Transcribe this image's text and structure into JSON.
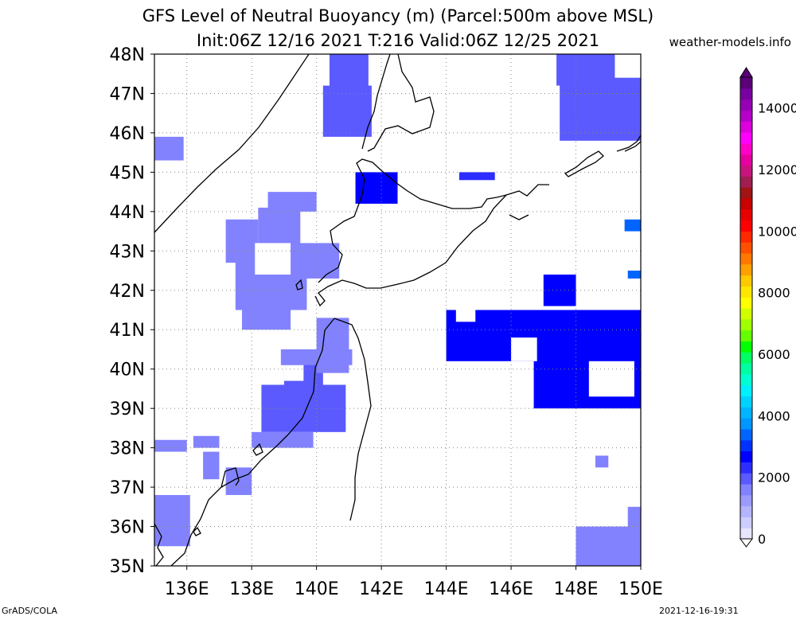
{
  "title": {
    "line1": "GFS Level of Neutral Buoyancy (m) (Parcel:500m above MSL)",
    "line2": "Init:06Z 12/16 2021 T:216 Valid:06Z 12/25 2021"
  },
  "site": "weather-models.info",
  "footer": {
    "left": "GrADS/COLA",
    "right": "2021-12-16-19:31"
  },
  "map": {
    "lon_range": [
      135,
      150
    ],
    "lat_range": [
      35,
      48
    ],
    "lon_ticks": [
      {
        "value": 136,
        "label": "136E"
      },
      {
        "value": 138,
        "label": "138E"
      },
      {
        "value": 140,
        "label": "140E"
      },
      {
        "value": 142,
        "label": "142E"
      },
      {
        "value": 144,
        "label": "144E"
      },
      {
        "value": 146,
        "label": "146E"
      },
      {
        "value": 148,
        "label": "148E"
      },
      {
        "value": 150,
        "label": "150E"
      }
    ],
    "lat_ticks": [
      {
        "value": 35,
        "label": "35N"
      },
      {
        "value": 36,
        "label": "36N"
      },
      {
        "value": 37,
        "label": "37N"
      },
      {
        "value": 38,
        "label": "38N"
      },
      {
        "value": 39,
        "label": "39N"
      },
      {
        "value": 40,
        "label": "40N"
      },
      {
        "value": 41,
        "label": "41N"
      },
      {
        "value": 42,
        "label": "42N"
      },
      {
        "value": 43,
        "label": "43N"
      },
      {
        "value": 44,
        "label": "44N"
      },
      {
        "value": 45,
        "label": "45N"
      },
      {
        "value": 46,
        "label": "46N"
      },
      {
        "value": 47,
        "label": "47N"
      },
      {
        "value": 48,
        "label": "48N"
      }
    ],
    "grid": true,
    "fill_regions": [
      {
        "lon": [
          135.0,
          135.9
        ],
        "lat": [
          45.3,
          45.9
        ],
        "value": 1600
      },
      {
        "lon": [
          136.5,
          137.0
        ],
        "lat": [
          37.2,
          37.9
        ],
        "value": 1500
      },
      {
        "lon": [
          137.2,
          138.2
        ],
        "lat": [
          42.7,
          43.8
        ],
        "value": 1600
      },
      {
        "lon": [
          137.5,
          139.7
        ],
        "lat": [
          41.5,
          42.9
        ],
        "value": 1600
      },
      {
        "lon": [
          137.7,
          139.2
        ],
        "lat": [
          41.0,
          41.6
        ],
        "value": 1600
      },
      {
        "lon": [
          138.2,
          139.5
        ],
        "lat": [
          42.9,
          44.1
        ],
        "value": 1600
      },
      {
        "lon": [
          138.5,
          140.0
        ],
        "lat": [
          44.0,
          44.5
        ],
        "value": 1600
      },
      {
        "lon": [
          138.7,
          140.7
        ],
        "lat": [
          42.3,
          43.2
        ],
        "value": 1600
      },
      {
        "lon": [
          138.3,
          140.9
        ],
        "lat": [
          38.4,
          39.6
        ],
        "value": 1900
      },
      {
        "lon": [
          139.0,
          140.2
        ],
        "lat": [
          39.5,
          40.5
        ],
        "value": 1800
      },
      {
        "lon": [
          140.0,
          141.0
        ],
        "lat": [
          39.9,
          41.3
        ],
        "value": 1700
      },
      {
        "lon": [
          138.9,
          141.1
        ],
        "lat": [
          40.1,
          40.5
        ],
        "value": 1600
      },
      {
        "lon": [
          138.0,
          139.9
        ],
        "lat": [
          38.0,
          38.4
        ],
        "value": 1600
      },
      {
        "lon": [
          137.2,
          138.0
        ],
        "lat": [
          36.8,
          37.5
        ],
        "value": 1500
      },
      {
        "lon": [
          135.0,
          136.1
        ],
        "lat": [
          35.5,
          36.8
        ],
        "value": 1500
      },
      {
        "lon": [
          135.0,
          136.0
        ],
        "lat": [
          37.9,
          38.2
        ],
        "value": 1500
      },
      {
        "lon": [
          136.2,
          137.0
        ],
        "lat": [
          38.0,
          38.3
        ],
        "value": 1500
      },
      {
        "lon": [
          140.4,
          141.6
        ],
        "lat": [
          47.0,
          48.0
        ],
        "value": 1800
      },
      {
        "lon": [
          140.2,
          141.7
        ],
        "lat": [
          45.9,
          47.2
        ],
        "value": 2000
      },
      {
        "lon": [
          141.2,
          142.5
        ],
        "lat": [
          44.2,
          45.0
        ],
        "value": 2500
      },
      {
        "lon": [
          147.4,
          149.2
        ],
        "lat": [
          47.2,
          48.0
        ],
        "value": 1800
      },
      {
        "lon": [
          147.5,
          150.0
        ],
        "lat": [
          45.8,
          47.4
        ],
        "value": 1800
      },
      {
        "lon": [
          144.0,
          150.0
        ],
        "lat": [
          40.2,
          41.5
        ],
        "value": 2600
      },
      {
        "lon": [
          146.7,
          150.0
        ],
        "lat": [
          39.0,
          40.3
        ],
        "value": 2600
      },
      {
        "lon": [
          147.0,
          148.0
        ],
        "lat": [
          41.6,
          42.4
        ],
        "value": 2600
      },
      {
        "lon": [
          149.0,
          150.0
        ],
        "lat": [
          40.0,
          40.6
        ],
        "value": 2600
      },
      {
        "lon": [
          148.0,
          150.0
        ],
        "lat": [
          35.0,
          36.0
        ],
        "value": 1500
      },
      {
        "lon": [
          149.6,
          150.0
        ],
        "lat": [
          35.8,
          36.5
        ],
        "value": 1500
      },
      {
        "lon": [
          149.5,
          150.0
        ],
        "lat": [
          43.5,
          43.8
        ],
        "value": 3300
      },
      {
        "lon": [
          149.6,
          150.0
        ],
        "lat": [
          42.3,
          42.5
        ],
        "value": 3300
      },
      {
        "lon": [
          144.4,
          145.5
        ],
        "lat": [
          44.8,
          45.0
        ],
        "value": 2400
      },
      {
        "lon": [
          148.6,
          149.0
        ],
        "lat": [
          37.5,
          37.8
        ],
        "value": 1600
      }
    ],
    "hole_regions": [
      {
        "lon": [
          148.4,
          149.8
        ],
        "lat": [
          39.3,
          40.2
        ]
      },
      {
        "lon": [
          138.1,
          139.2
        ],
        "lat": [
          42.4,
          43.2
        ]
      },
      {
        "lon": [
          139.0,
          139.6
        ],
        "lat": [
          39.7,
          40.1
        ]
      },
      {
        "lon": [
          146.0,
          146.8
        ],
        "lat": [
          40.2,
          40.8
        ]
      },
      {
        "lon": [
          144.3,
          144.9
        ],
        "lat": [
          41.2,
          41.6
        ]
      }
    ]
  },
  "colorbar": {
    "min": 0,
    "max": 15000,
    "labels": [
      {
        "value": 0,
        "label": "0"
      },
      {
        "value": 2000,
        "label": "2000"
      },
      {
        "value": 4000,
        "label": "4000"
      },
      {
        "value": 6000,
        "label": "6000"
      },
      {
        "value": 8000,
        "label": "8000"
      },
      {
        "value": 10000,
        "label": "10000"
      },
      {
        "value": 12000,
        "label": "12000"
      },
      {
        "value": 14000,
        "label": "14000"
      }
    ],
    "colors": [
      "#e6e6ff",
      "#cdcdff",
      "#b4b4ff",
      "#9b9bff",
      "#8282ff",
      "#5a5aff",
      "#2d2dff",
      "#0000ff",
      "#0032ff",
      "#0064ff",
      "#0096ff",
      "#00b4ff",
      "#00d2ff",
      "#00f0ff",
      "#00ffd2",
      "#00ffa0",
      "#00ff64",
      "#00ff00",
      "#64ff00",
      "#a0ff00",
      "#d2ff00",
      "#ffff00",
      "#ffe600",
      "#ffc800",
      "#ffa000",
      "#ff7800",
      "#ff5000",
      "#ff2800",
      "#ff0000",
      "#e60000",
      "#c80000",
      "#a01414",
      "#a01e50",
      "#c8147d",
      "#e600a0",
      "#ff00c8",
      "#ff00ff",
      "#dc00dc",
      "#b400c8",
      "#9600b4",
      "#7800a0",
      "#5a0078"
    ]
  }
}
